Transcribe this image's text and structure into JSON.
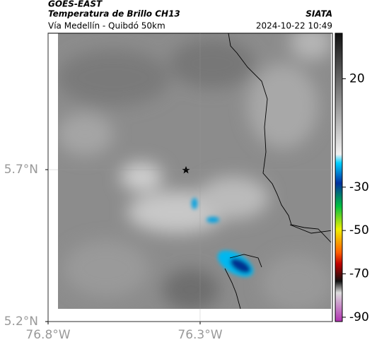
{
  "header": {
    "product": "GOES-EAST",
    "title": "Temperatura de Brillo CH13",
    "subtitle": "Vía Medellín - Quibdó 50km",
    "source": "SIATA",
    "datetime": "2024-10-22 10:49"
  },
  "map": {
    "xlim": [
      -76.8,
      -75.865
    ],
    "ylim": [
      5.2,
      6.149
    ],
    "xticks": [
      {
        "value": -76.8,
        "label": "76.8°W"
      },
      {
        "value": -76.3,
        "label": "76.3°W"
      }
    ],
    "yticks": [
      {
        "value": 5.2,
        "label": "5.2°N"
      },
      {
        "value": 5.7,
        "label": "5.7°N"
      }
    ]
  },
  "colorbar": {
    "clim": [
      -92,
      41
    ],
    "ticks": [
      20,
      -30,
      -50,
      -70,
      -90
    ]
  }
}
